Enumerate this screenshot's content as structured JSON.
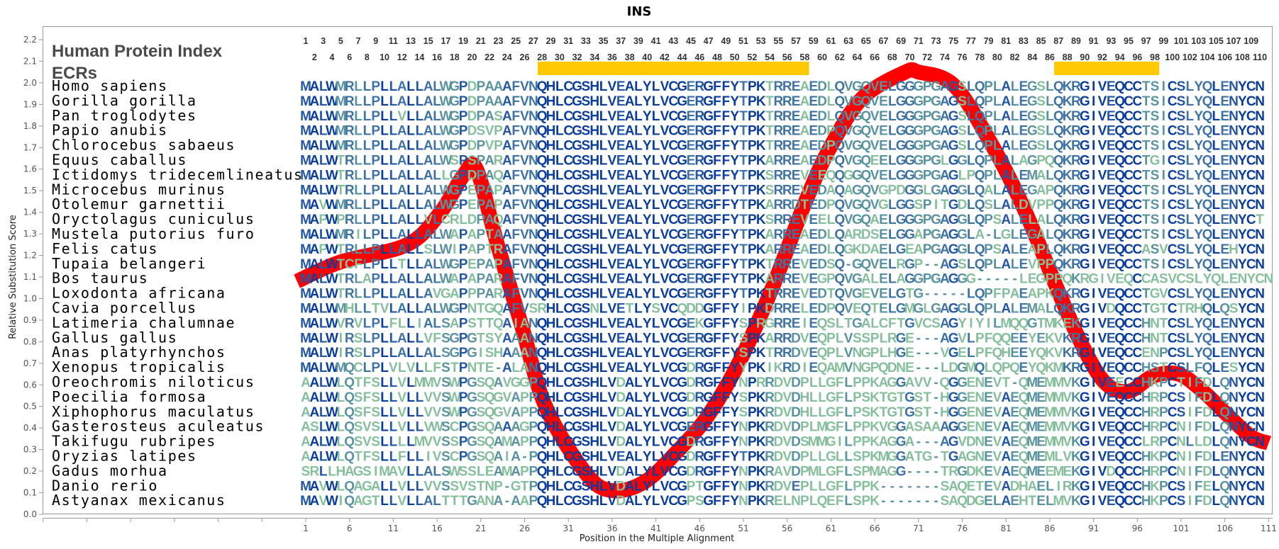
{
  "chart_data": {
    "type": "line",
    "title": "INS",
    "xlabel": "Position in the Multiple Alignment",
    "ylabel": "Relative Substitution Score",
    "ylim": [
      0,
      2.2
    ],
    "yticks": [
      "0.0",
      "0.1",
      "0.2",
      "0.3",
      "0.4",
      "0.5",
      "0.6",
      "0.7",
      "0.8",
      "0.9",
      "1.0",
      "1.1",
      "1.2",
      "1.3",
      "1.4",
      "1.5",
      "1.6",
      "1.7",
      "1.8",
      "1.9",
      "2.0",
      "2.1",
      "2.2"
    ],
    "xticks": [
      "1",
      "6",
      "11",
      "16",
      "21",
      "26",
      "31",
      "36",
      "41",
      "46",
      "51",
      "56",
      "61",
      "66",
      "71",
      "76",
      "81",
      "86",
      "91",
      "96",
      "101",
      "106",
      "111"
    ],
    "grid": false,
    "series": [
      {
        "color": "#ff0000",
        "points": [
          [
            0,
            1.08
          ],
          [
            5,
            1.17
          ],
          [
            12.6,
            1.25
          ],
          [
            16.4,
            1.4
          ],
          [
            19,
            1.57
          ],
          [
            20.5,
            1.6
          ],
          [
            22.9,
            1.25
          ],
          [
            25.7,
            0.87
          ],
          [
            28.4,
            0.5
          ],
          [
            33,
            0.19
          ],
          [
            36,
            0.11
          ],
          [
            39.7,
            0.15
          ],
          [
            43.4,
            0.29
          ],
          [
            47,
            0.46
          ],
          [
            50.7,
            0.72
          ],
          [
            54.4,
            1.06
          ],
          [
            58,
            1.44
          ],
          [
            60.9,
            1.7
          ],
          [
            64.6,
            1.93
          ],
          [
            69.5,
            2.05
          ],
          [
            71,
            2.05
          ],
          [
            75,
            1.99
          ],
          [
            79,
            1.74
          ],
          [
            82.8,
            1.44
          ],
          [
            86.7,
            1.06
          ],
          [
            89.5,
            0.8
          ],
          [
            92.3,
            0.61
          ],
          [
            95,
            0.57
          ],
          [
            97.8,
            0.64
          ],
          [
            100.7,
            0.65
          ],
          [
            103.5,
            0.57
          ],
          [
            106.3,
            0.46
          ],
          [
            109,
            0.36
          ],
          [
            111,
            0.33
          ]
        ]
      }
    ],
    "header": {
      "protein_index_label": "Human Protein Index",
      "ecr_label": "ECRs",
      "index_numbers": [
        "1",
        "2",
        "3",
        "4",
        "5",
        "6",
        "7",
        "8",
        "9",
        "10",
        "11",
        "12",
        "13",
        "14",
        "15",
        "16",
        "17",
        "18",
        "19",
        "20",
        "21",
        "22",
        "23",
        "24",
        "25",
        "26",
        "27",
        "28",
        "29",
        "30",
        "31",
        "32",
        "33",
        "34",
        "35",
        "36",
        "37",
        "38",
        "39",
        "40",
        "41",
        "42",
        "43",
        "44",
        "45",
        "46",
        "47",
        "48",
        "49",
        "50",
        "51",
        "52",
        "53",
        "54",
        "55",
        "56",
        "57",
        "58",
        "59",
        "60",
        "61",
        "62",
        "63",
        "64",
        "65",
        "66",
        "67",
        "68",
        "69",
        "70",
        "71",
        "72",
        "73",
        "74",
        "75",
        "76",
        "77",
        "78",
        "79",
        "80",
        "81",
        "82",
        "83",
        "84",
        "85",
        "86",
        "87",
        "88",
        "89",
        "90",
        "91",
        "92",
        "93",
        "94",
        "95",
        "96",
        "97",
        "98",
        "99",
        "100",
        "101",
        "102",
        "103",
        "104",
        "105",
        "106",
        "107",
        "108",
        "109",
        "110"
      ]
    },
    "ecrs": [
      {
        "start": 28,
        "end": 58
      },
      {
        "start": 87,
        "end": 98
      }
    ],
    "ecr_color": "#ffc800",
    "conservation_colors": [
      "#0b3d9c",
      "#2356a6",
      "#3f73a3",
      "#5a93a0",
      "#86bf9c"
    ],
    "alignment": [
      {
        "species": "Homo sapiens",
        "sequence": "MALWMRLLPLLALLALWGPDPAAAFVNQHLCGSHLVEALYLVCGERGFFYTPKTRREAEDLQVGQVELGGGPGAGSLQPLALEGSLQKRGIVEQCCTSICSLYQLENYCN"
      },
      {
        "species": "Gorilla gorilla",
        "sequence": "MALWMRLLPLLALLALWGPDPAAAFVNQHLCGSHLVEALYLVCGERGFFYTPKTRREAEDLQVGQVELGGGPGAGSLQPLALEGSLQKRGIVEQCCTSICSLYQLENYCN"
      },
      {
        "species": "Pan troglodytes",
        "sequence": "MALWMRLLPLLVLLALWGPDPASAFVNQHLCGSHLVEALYLVCGERGFFYTPKTRREAEDLQVGQVELGGGPGAGSLQPLALEGSLQKRGIVEQCCTSICSLYQLENYCN"
      },
      {
        "species": "Papio anubis",
        "sequence": "MALWMRLLPLLALLALWGPDSVPAFVNQHLCGSHLVEALYLVCGERGFFYTPKTRREAEDPQVGQVELGGGPGAGSLQPLALEGSLQKRGIVEQCCTSICSLYQLENYCN"
      },
      {
        "species": "Chlorocebus sabaeus",
        "sequence": "MALWMRLLPLLALLALWGPDPVPAFVNQHLCGSHLVEALYLVCGERGFFYTPKTRREAEDPQVGQVELGGGPGAGSLQPLALEGSLQKRGIVEQCCTSICSLYQLENYCN"
      },
      {
        "species": "Equus caballus",
        "sequence": "MALWTRLLPLLALLALWSPSPARAFVNQHLCGSHLVEALYLVCGERGFFYTPKARREAEDPQVGQEELGGGPGLGGLQPLALAGPQQKRGIVEQCCTGICSLYQLENYCN"
      },
      {
        "species": "Ictidomys tridecemlineatus",
        "sequence": "MALWTRLLPLLALLALLGPDPAQAFVNQHLCGSHLVEALYLVCGERGFFYTPKSRREVEEQQGGQVELGGGPGAGLPQPLALEMALQKRGIVEQCCTSICSLYQLENYCN"
      },
      {
        "species": "Microcebus murinus",
        "sequence": "MALWTRLLPLLALLALWGPEPAPAFVNQHLCGSHLVEALYLVCGERGFFYTPKSRREVEDAQAGQVGPDGGLGAGGLQALALEGAPQKRGIVEQCCTSICSLYQLENYCN"
      },
      {
        "species": "Otolemur garnettii",
        "sequence": "MAVWMRLLPLLALLALWGPEPAPAFVNQHLCGSHLVEALYLVCGERGFFYTPKARRDTEDPQVGQVGLGGSPITGDLQSLALDVPPQKRGIVEQCCTSICSLYQLENYCN"
      },
      {
        "species": "Oryctolagus cuniculus",
        "sequence": "MAPWPRLLPLLALLVLCRLDPAQAFVNQHLCGSHLVEALYLVCGERGFFYTPKSRREVEELQVGQAELGGGPGAGGLQPSALELALQKRGIVEQCCTSICSLYQLENYCT"
      },
      {
        "species": "Mustela putorius furo",
        "sequence": "MALWMRILPLLALLALWAPAPTAAFVNQHLCGSHLVEALYLVCGERGFFYTPKARREAEDLQARDSELGGAPGAGGLA-LGLEGALQKRGIVEQCCTSICSLYQLENYCN"
      },
      {
        "species": "Felis catus",
        "sequence": "MAPWTRLLPLLALLSLWIPAPTRAFVNQHLCGSHLVEALYLVCGERGFFYTPKARREAEDLQGKDAELGEAPGAGGLQPSALEAPLQKRGIVEQCCASVCSLYQLEHYCN"
      },
      {
        "species": "Tupaia belangeri",
        "sequence": "MALWTCFLPLLTLLALWGPEPAPAFVNQHLCGSHLVEALYLVCGERGFFYTPKTRREVEDSQ-GQVELRGP--AGSLQPLALEVPPQKRGIVEQCCTSICSLYQLENYCN"
      },
      {
        "species": "Bos taurus",
        "sequence": "MALWTRLAPLLALLALWAPAPARAFVNQHLCGSHLVEALYLVCGERGFFYTPKARREVEGPQVGALELAGGPGAGGG-----LEGPPQKRGIVEQCCASVCSLYQLENYCN"
      },
      {
        "species": "Loxodonta africana",
        "sequence": "MALWTRLLPLLALLAVGAPPPARAFVNQHLCGSHLVEALYLVCGERGFFYTPKTRREVEDTQVGEVELGTG-----LQPFPAEAPKQKRGIVEQCCTGVCSLYQLENYCN"
      },
      {
        "species": "Cavia porcellus",
        "sequence": "MALWMHLLTVLALLALWGPNTGQAFVSRHLCGSNLVETLYSVCQDDGFFYIPKDRRELEDPQVEQTELGMGLGAGGLQPLALEMALQKRGIVDQCCTGTCTRHQLQSYCN"
      },
      {
        "species": "Latimeria chalumnae",
        "sequence": "MALWVRVLPLFLLIALSAPSTTQAIANQHLCGSHLVEALYLVCGEKGFFYSPRGRREIEQSLTGALCFTGVCSAGYIYILMQQGTMKEKGIVEQCCHNTCSLYQLENYCN"
      },
      {
        "species": "Gallus gallus",
        "sequence": "MALWIRSLPLLALLVFSGPGTSYAAANQHLCGSHLVEALYLVCGERGFFYSPKARRDVEQPLVSSPLRGE---AGVLPFQQEEYEKVKRGIVEQCCHNTCSLYQLENYCN"
      },
      {
        "species": "Anas platyrhynchos",
        "sequence": "MALWIRSLPLLALLALSGPGISHAAANQHLCGSHLVEALYLVCGERGFFYSPKTRRDVEQPLVNGPLHGE---VGELPFQHEEYQKVKRGIVEQCCENPCSLYQLENYCN"
      },
      {
        "species": "Xenopus tropicalis",
        "sequence": "MALWMQCLPLVLVLLFSTPNTE-ALANQHLCGSHLVEALYLVCGDRGFFYYPKIKRDIEQAMVNGPQDNE---LDGMQLQPQEYQKMKRGIVEQCCHSTCSLFQLESYCN"
      },
      {
        "species": "Oreochromis niloticus",
        "sequence": "AALWLQTFSLLVLMMVSWPGSQAVGGPQHLCGSHLVDALYLVCGDRGFFYNPRRDVDPLLGFLPPKAGGAVV-QGGENEVT-QMEMMVKGIVEECCHKPCTIFDLQNYCN"
      },
      {
        "species": "Poecilia formosa",
        "sequence": "AALWLQSFSLLVLLVVSWPGSQGVAPPQHLCGSHLVDALYLVCGDRGFFYSPKRDVDHLLGFLPSKTGTGST-HGGENEVAEQMEMMVKGIVEQCCHRPCSIFDLQNYCN"
      },
      {
        "species": "Xiphophorus maculatus",
        "sequence": "AALWLQSFSLLVLLVVSWPGSQGVAPPQHLCGSHLVDALYLVCGDRGFFYSPKRDVDHLLGFLPSKTGTGST-HGGENEVAEQMEMMVKGIVEQCCHRPCSIFDLQNYCN"
      },
      {
        "species": "Gasterosteus aculeatus",
        "sequence": "ASLWLQSVSLLVLLVWSCPGSQAAAGPQHLCGSHLVDALYLVCGERGFFYNPKRDVDPLMGFLPPKVGGASAAAGGENEVAEQMEMMVKGIVEQCCHRPCNIFDLQNYCN"
      },
      {
        "species": "Takifugu rubripes",
        "sequence": "AALWLQSVSLLLLMVVSSPGSQAMAPPQHLCGSHLVDALYLVCGDRGFFYNPKRDVDSMMGILPPKAGGA---AGVDNEVAEQMEMMVKGIVEQCCLRPCNLLDLQNYCN"
      },
      {
        "species": "Oryzias latipes",
        "sequence": "AALWLQTFSLLFLLIVSCPGSQAIA-PQHLCGSHLVEALYLVCGDRGFFYTPKRDVDPLLGLLSPKMGGATG-TGAGNEVAEQMEMLVKGIVEQCCHKPCNIFDLENYCN"
      },
      {
        "species": "Gadus morhua",
        "sequence": "SRLLHAGSIMAVLLALSWSSLEAMAPPQHLCGSHLVDALYLVCGDRGFFYNPKRAVDPMLGFLSPMAGG----TRGDKEVAEQMEEMEKGIVDQCCHRPCNIFDLQNYCN"
      },
      {
        "species": "Danio rerio",
        "sequence": "MAVWLQAGALLVLLVVSSVSTNP-GTPQHLCGSHLVDALYLVCGPTGFFYNPKRDVEPLLGFLPPK-------SAQETEVADHAELIRKGIVEQCCHKPCSIFELQNYCN"
      },
      {
        "species": "Astyanax mexicanus",
        "sequence": "MAVWIQAGTLLVLLALTTTGANA-AAPQHLCGSHLVDALYLVCGPSGFFYNPKRELNPLQEFLSPK-------SAQDGELAEHTELMVKGIVEQCCHKPCSIFDLQNYCN"
      }
    ]
  }
}
